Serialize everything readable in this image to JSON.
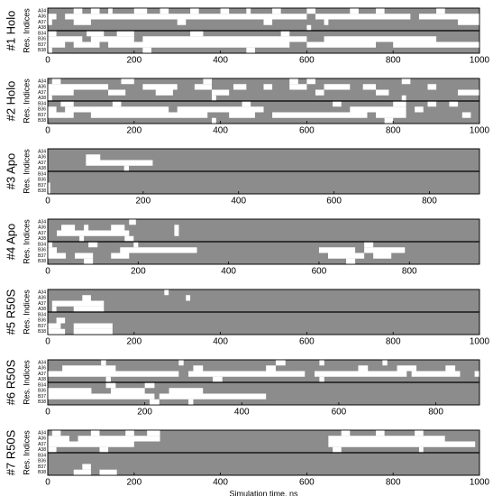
{
  "chart_data": [
    {
      "type": "occupancy",
      "panel_label": "#1 Holo",
      "y_label": "Res. Indices",
      "rows": [
        "A34",
        "A36",
        "A37",
        "A38",
        "B34",
        "B36",
        "B37",
        "B38"
      ],
      "segments": [
        [
          [
            60,
            80
          ],
          [
            100,
            120
          ],
          [
            140,
            150
          ],
          [
            200,
            230
          ],
          [
            260,
            280
          ],
          [
            330,
            350
          ],
          [
            400,
            420
          ],
          [
            460,
            470
          ],
          [
            520,
            540
          ],
          [
            600,
            620
          ],
          [
            700,
            720
          ],
          [
            760,
            780
          ],
          [
            900,
            920
          ]
        ],
        [
          [
            0,
            20
          ],
          [
            40,
            600
          ],
          [
            620,
            840
          ],
          [
            860,
            1000
          ]
        ],
        [
          [
            0,
            10
          ],
          [
            60,
            100
          ],
          [
            300,
            320
          ],
          [
            500,
            520
          ],
          [
            640,
            650
          ],
          [
            950,
            1000
          ]
        ],
        [
          [
            600,
            610
          ]
        ],
        [
          [
            0,
            20
          ],
          [
            90,
            130
          ],
          [
            160,
            200
          ],
          [
            330,
            360
          ],
          [
            540,
            560
          ]
        ],
        [
          [
            0,
            80
          ],
          [
            100,
            200
          ],
          [
            220,
            600
          ],
          [
            640,
            900
          ]
        ],
        [
          [
            0,
            40
          ],
          [
            60,
            120
          ],
          [
            140,
            560
          ],
          [
            600,
            760
          ],
          [
            800,
            1000
          ]
        ],
        [
          [
            0,
            10
          ],
          [
            220,
            240
          ],
          [
            460,
            480
          ]
        ]
      ],
      "xlim": [
        0,
        1000
      ],
      "xticks": [
        0,
        200,
        400,
        600,
        800,
        1000
      ]
    },
    {
      "type": "occupancy",
      "panel_label": "#2 Holo",
      "y_label": "Res. Indices",
      "rows": [
        "A34",
        "A36",
        "A37",
        "A38",
        "B34",
        "B36",
        "B37",
        "B38"
      ],
      "segments": [
        [
          [
            10,
            30
          ],
          [
            170,
            200
          ],
          [
            360,
            380
          ],
          [
            560,
            580
          ],
          [
            600,
            620
          ],
          [
            820,
            840
          ]
        ],
        [
          [
            0,
            140
          ],
          [
            220,
            300
          ],
          [
            340,
            380
          ],
          [
            430,
            460
          ],
          [
            500,
            520
          ],
          [
            560,
            600
          ],
          [
            640,
            700
          ],
          [
            730,
            760
          ],
          [
            880,
            900
          ]
        ],
        [
          [
            0,
            60
          ],
          [
            140,
            180
          ],
          [
            250,
            290
          ],
          [
            380,
            420
          ],
          [
            620,
            640
          ],
          [
            760,
            790
          ],
          [
            950,
            1000
          ]
        ],
        [
          [
            0,
            10
          ],
          [
            380,
            390
          ],
          [
            820,
            830
          ]
        ],
        [
          [
            30,
            60
          ],
          [
            150,
            170
          ],
          [
            450,
            470
          ],
          [
            660,
            680
          ],
          [
            800,
            830
          ],
          [
            880,
            900
          ],
          [
            930,
            950
          ]
        ],
        [
          [
            0,
            20
          ],
          [
            40,
            280
          ],
          [
            300,
            500
          ],
          [
            700,
            830
          ],
          [
            850,
            870
          ]
        ],
        [
          [
            0,
            60
          ],
          [
            100,
            370
          ],
          [
            420,
            480
          ],
          [
            520,
            740
          ],
          [
            760,
            830
          ],
          [
            960,
            980
          ]
        ],
        [
          [
            380,
            390
          ],
          [
            780,
            800
          ]
        ]
      ],
      "xlim": [
        0,
        1000
      ],
      "xticks": [
        0,
        200,
        400,
        600,
        800,
        1000
      ]
    },
    {
      "type": "occupancy",
      "panel_label": "#3 Apo",
      "y_label": "Res. Indices",
      "rows": [
        "A34",
        "A36",
        "A37",
        "A38",
        "B34",
        "B36",
        "B37",
        "B38"
      ],
      "segments": [
        [],
        [
          [
            80,
            110
          ]
        ],
        [
          [
            80,
            220
          ]
        ],
        [
          [
            160,
            170
          ]
        ],
        [],
        [],
        [
          [
            0,
            5
          ]
        ],
        [
          [
            0,
            5
          ]
        ]
      ],
      "xlim": [
        0,
        905
      ],
      "xticks": [
        0,
        200,
        400,
        600,
        800
      ]
    },
    {
      "type": "occupancy",
      "panel_label": "#4 Apo",
      "y_label": "Res. Indices",
      "rows": [
        "A34",
        "A36",
        "A37",
        "A38",
        "B34",
        "B36",
        "B37",
        "B38"
      ],
      "segments": [
        [
          [
            180,
            195
          ]
        ],
        [
          [
            30,
            60
          ],
          [
            80,
            90
          ],
          [
            140,
            170
          ],
          [
            280,
            290
          ]
        ],
        [
          [
            20,
            180
          ],
          [
            280,
            290
          ]
        ],
        [
          [
            70,
            80
          ],
          [
            170,
            190
          ]
        ],
        [
          [
            0,
            10
          ],
          [
            90,
            110
          ],
          [
            190,
            200
          ],
          [
            700,
            720
          ]
        ],
        [
          [
            0,
            20
          ],
          [
            160,
            330
          ],
          [
            600,
            680
          ],
          [
            700,
            790
          ]
        ],
        [
          [
            0,
            40
          ],
          [
            60,
            100
          ],
          [
            140,
            180
          ],
          [
            620,
            700
          ],
          [
            720,
            760
          ]
        ],
        [
          [
            80,
            100
          ],
          [
            660,
            680
          ]
        ]
      ],
      "xlim": [
        0,
        955
      ],
      "xticks": [
        0,
        200,
        400,
        600,
        800
      ]
    },
    {
      "type": "occupancy",
      "panel_label": "#5 R50S",
      "y_label": "Res. Indices",
      "rows": [
        "A34",
        "A36",
        "A37",
        "A38",
        "B34",
        "B36",
        "B37",
        "B38"
      ],
      "segments": [
        [
          [
            270,
            280
          ]
        ],
        [
          [
            80,
            100
          ],
          [
            320,
            330
          ]
        ],
        [
          [
            10,
            130
          ]
        ],
        [
          [
            10,
            20
          ],
          [
            60,
            130
          ]
        ],
        [],
        [
          [
            20,
            40
          ]
        ],
        [
          [
            0,
            30
          ],
          [
            60,
            150
          ]
        ],
        [
          [
            0,
            40
          ],
          [
            60,
            150
          ]
        ]
      ],
      "xlim": [
        0,
        1000
      ],
      "xticks": [
        0,
        200,
        400,
        600,
        800,
        1000
      ]
    },
    {
      "type": "occupancy",
      "panel_label": "#6 R50S",
      "y_label": "Res. Indices",
      "rows": [
        "A34",
        "A36",
        "A37",
        "A38",
        "B34",
        "B36",
        "B37",
        "B38"
      ],
      "segments": [
        [
          [
            110,
            120
          ],
          [
            270,
            280
          ],
          [
            470,
            490
          ],
          [
            560,
            570
          ],
          [
            690,
            700
          ]
        ],
        [
          [
            30,
            140
          ],
          [
            300,
            320
          ],
          [
            450,
            470
          ],
          [
            640,
            660
          ],
          [
            720,
            760
          ],
          [
            820,
            840
          ]
        ],
        [
          [
            0,
            270
          ],
          [
            290,
            530
          ],
          [
            550,
            740
          ],
          [
            750,
            850
          ],
          [
            880,
            890
          ]
        ],
        [
          [
            120,
            130
          ],
          [
            340,
            360
          ],
          [
            560,
            570
          ]
        ],
        [
          [
            120,
            140
          ],
          [
            200,
            220
          ]
        ],
        [
          [
            0,
            90
          ],
          [
            130,
            200
          ],
          [
            250,
            320
          ]
        ],
        [
          [
            0,
            220
          ],
          [
            230,
            450
          ]
        ],
        [
          [
            210,
            230
          ],
          [
            290,
            300
          ]
        ]
      ],
      "xlim": [
        0,
        890
      ],
      "xticks": [
        0,
        200,
        400,
        600,
        800
      ]
    },
    {
      "type": "occupancy",
      "panel_label": "#7 R50S",
      "y_label": "Res. Indices",
      "rows": [
        "A34",
        "A36",
        "A37",
        "A38",
        "B34",
        "B36",
        "B37",
        "B38"
      ],
      "segments": [
        [
          [
            10,
            30
          ],
          [
            100,
            120
          ],
          [
            180,
            200
          ],
          [
            230,
            260
          ],
          [
            680,
            700
          ],
          [
            760,
            780
          ],
          [
            850,
            870
          ]
        ],
        [
          [
            0,
            50
          ],
          [
            70,
            260
          ],
          [
            650,
            920
          ]
        ],
        [
          [
            0,
            200
          ],
          [
            650,
            990
          ]
        ],
        [
          [
            0,
            20
          ],
          [
            120,
            140
          ],
          [
            660,
            680
          ],
          [
            860,
            870
          ]
        ],
        [],
        [],
        [
          [
            80,
            100
          ]
        ],
        [
          [
            60,
            100
          ],
          [
            120,
            160
          ]
        ]
      ],
      "xlim": [
        0,
        1000
      ],
      "xticks": [
        0,
        200,
        400,
        600,
        800,
        1000
      ],
      "x_label": "Simulation time, ns"
    }
  ]
}
